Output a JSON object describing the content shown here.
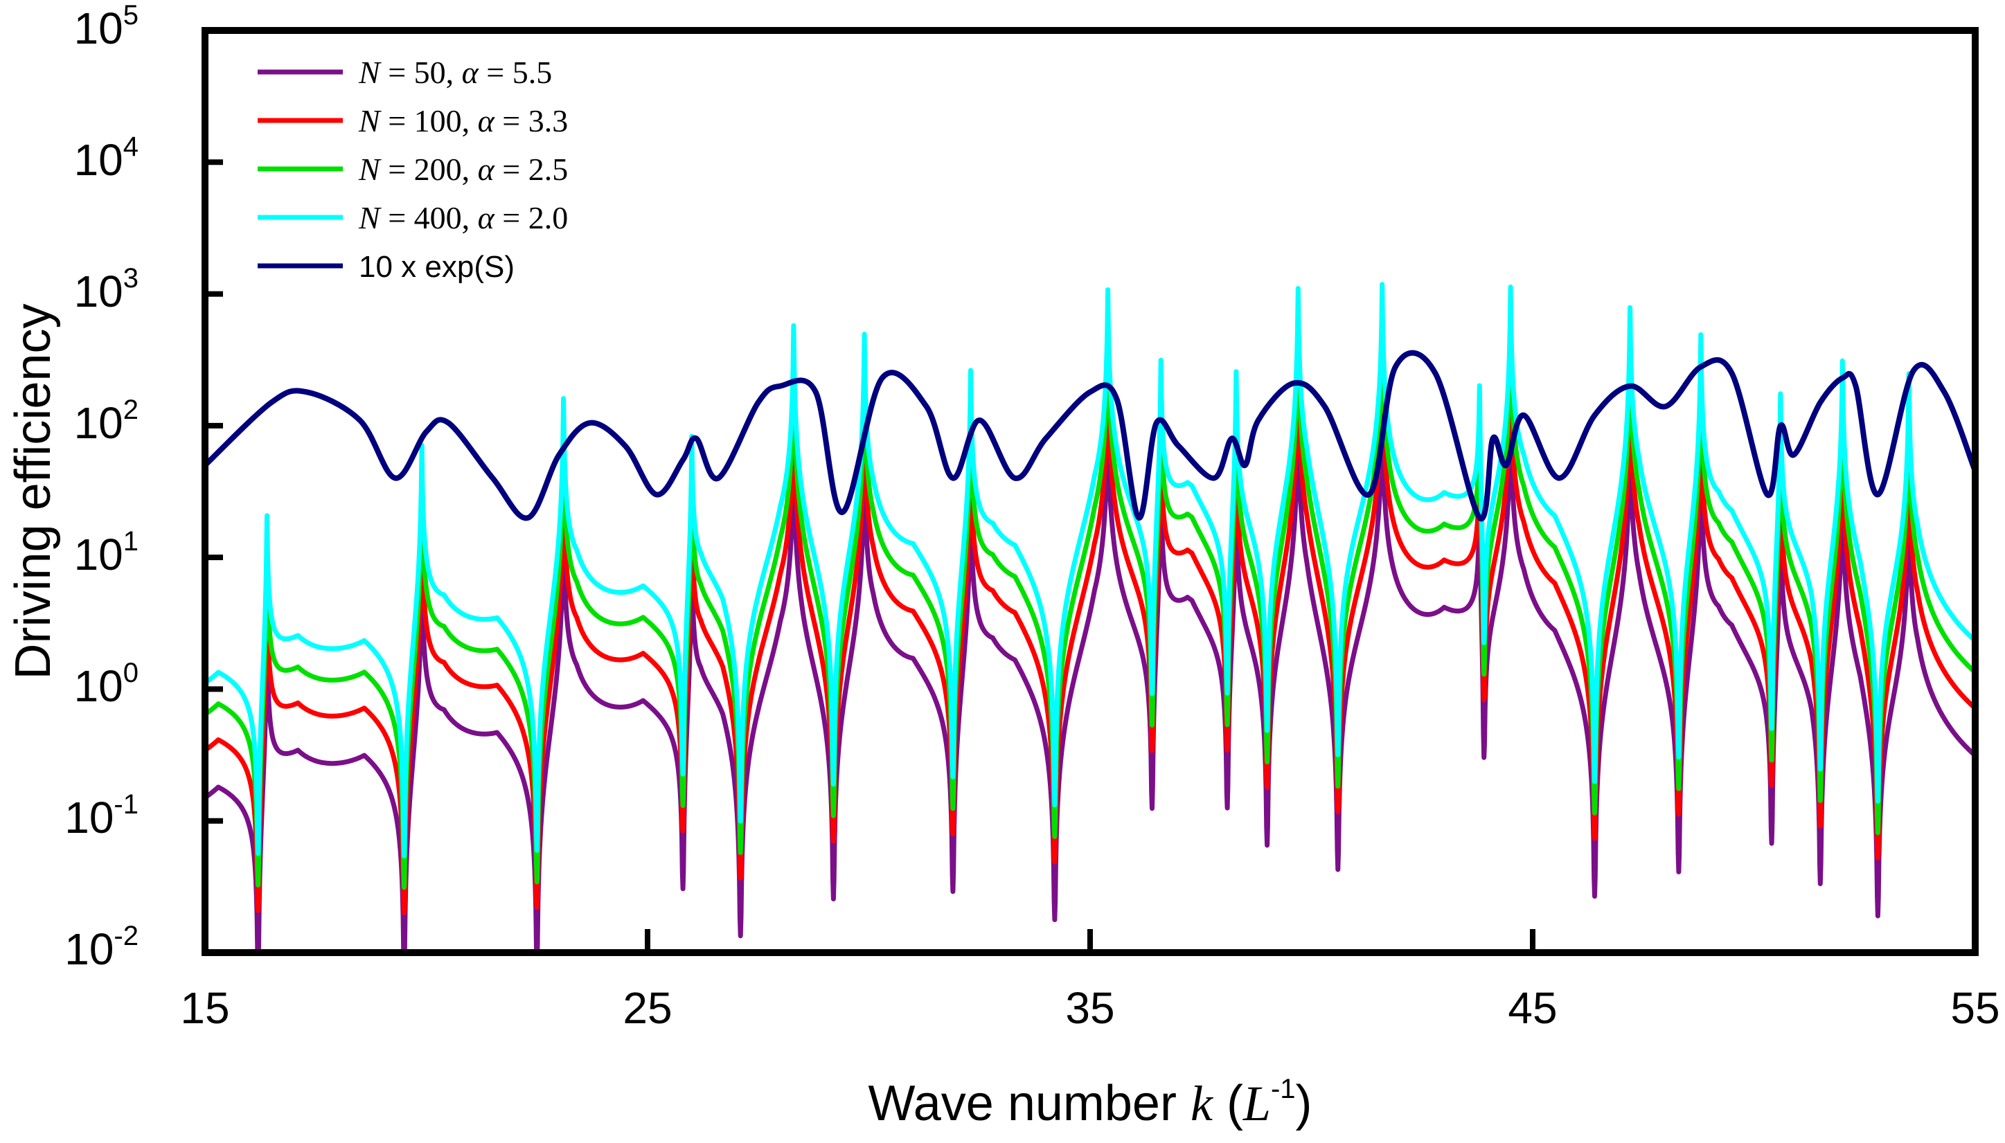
{
  "chart_data": {
    "type": "line",
    "title": "",
    "xlabel": "Wave number",
    "xlabel_var": "k",
    "xlabel_unit": "L",
    "xlabel_unit_exp": "-1",
    "ylabel": "Driving efficiency",
    "xlim": [
      15,
      55
    ],
    "ylim_log10": [
      -2,
      5
    ],
    "yscale": "log",
    "x_ticks": [
      "15",
      "25",
      "35",
      "45",
      "55"
    ],
    "y_ticks": [
      {
        "base": "10",
        "exp": "5"
      },
      {
        "base": "10",
        "exp": "4"
      },
      {
        "base": "10",
        "exp": "3"
      },
      {
        "base": "10",
        "exp": "2"
      },
      {
        "base": "10",
        "exp": "1"
      },
      {
        "base": "10",
        "exp": "0"
      },
      {
        "base": "10",
        "exp": "-1"
      },
      {
        "base": "10",
        "exp": "-2"
      }
    ],
    "legend_position": "top-left",
    "resonances": [
      16.4,
      19.9,
      23.1,
      26.0,
      28.3,
      29.9,
      32.3,
      35.4,
      36.6,
      38.3,
      39.7,
      41.6,
      43.8,
      44.5,
      47.2,
      48.8,
      50.6,
      52.0,
      53.5
    ],
    "antiresonances": [
      16.2,
      19.5,
      22.5,
      25.8,
      27.1,
      29.2,
      31.9,
      34.2,
      36.4,
      38.1,
      39.0,
      40.6,
      43.9,
      46.4,
      48.3,
      50.4,
      51.5,
      52.8
    ],
    "series": [
      {
        "name": "N = 50, α = 5.5",
        "N": "50",
        "alpha": "5.5",
        "color": "#7b0f8a",
        "base_level": 0.35,
        "peak_max": 120,
        "dip_min": 0.01
      },
      {
        "name": "N = 100, α = 3.3",
        "N": "100",
        "alpha": "3.3",
        "color": "#ff0000",
        "base_level": 0.8,
        "peak_max": 1300,
        "dip_min": 0.012
      },
      {
        "name": "N = 200, α = 2.5",
        "N": "200",
        "alpha": "2.5",
        "color": "#00e000",
        "base_level": 1.5,
        "peak_max": 1500,
        "dip_min": 0.01
      },
      {
        "name": "N = 400, α = 2.0",
        "N": "400",
        "alpha": "2.0",
        "color": "#00ffff",
        "base_level": 2.6,
        "peak_max": 1500,
        "dip_min": 0.01
      }
    ],
    "envelope": {
      "name": "10 x exp(S)",
      "color": "#00007f",
      "x": [
        15,
        16.5,
        17.3,
        18.5,
        19.3,
        20.0,
        20.5,
        21.5,
        22.3,
        23.0,
        23.7,
        24.5,
        25.2,
        25.8,
        26.1,
        26.6,
        27.5,
        28.0,
        28.8,
        29.4,
        30.3,
        31.3,
        31.9,
        32.5,
        33.3,
        34.0,
        35.0,
        35.6,
        36.1,
        36.5,
        37.0,
        37.8,
        38.2,
        38.5,
        38.8,
        39.6,
        40.3,
        41.3,
        41.9,
        42.8,
        43.8,
        44.1,
        44.4,
        44.8,
        45.6,
        46.4,
        47.2,
        48.0,
        48.8,
        49.5,
        50.3,
        50.6,
        50.9,
        51.5,
        52.0,
        52.3,
        52.8,
        53.6,
        54.3,
        55
      ],
      "y": [
        50,
        150,
        180,
        110,
        40,
        90,
        105,
        40,
        20,
        60,
        105,
        70,
        30,
        55,
        80,
        40,
        150,
        200,
        180,
        22,
        230,
        140,
        40,
        110,
        40,
        80,
        180,
        160,
        20,
        105,
        70,
        40,
        80,
        50,
        110,
        210,
        140,
        30,
        280,
        250,
        20,
        80,
        50,
        120,
        40,
        120,
        200,
        140,
        280,
        250,
        30,
        100,
        60,
        150,
        230,
        200,
        30,
        260,
        180,
        45
      ]
    }
  }
}
